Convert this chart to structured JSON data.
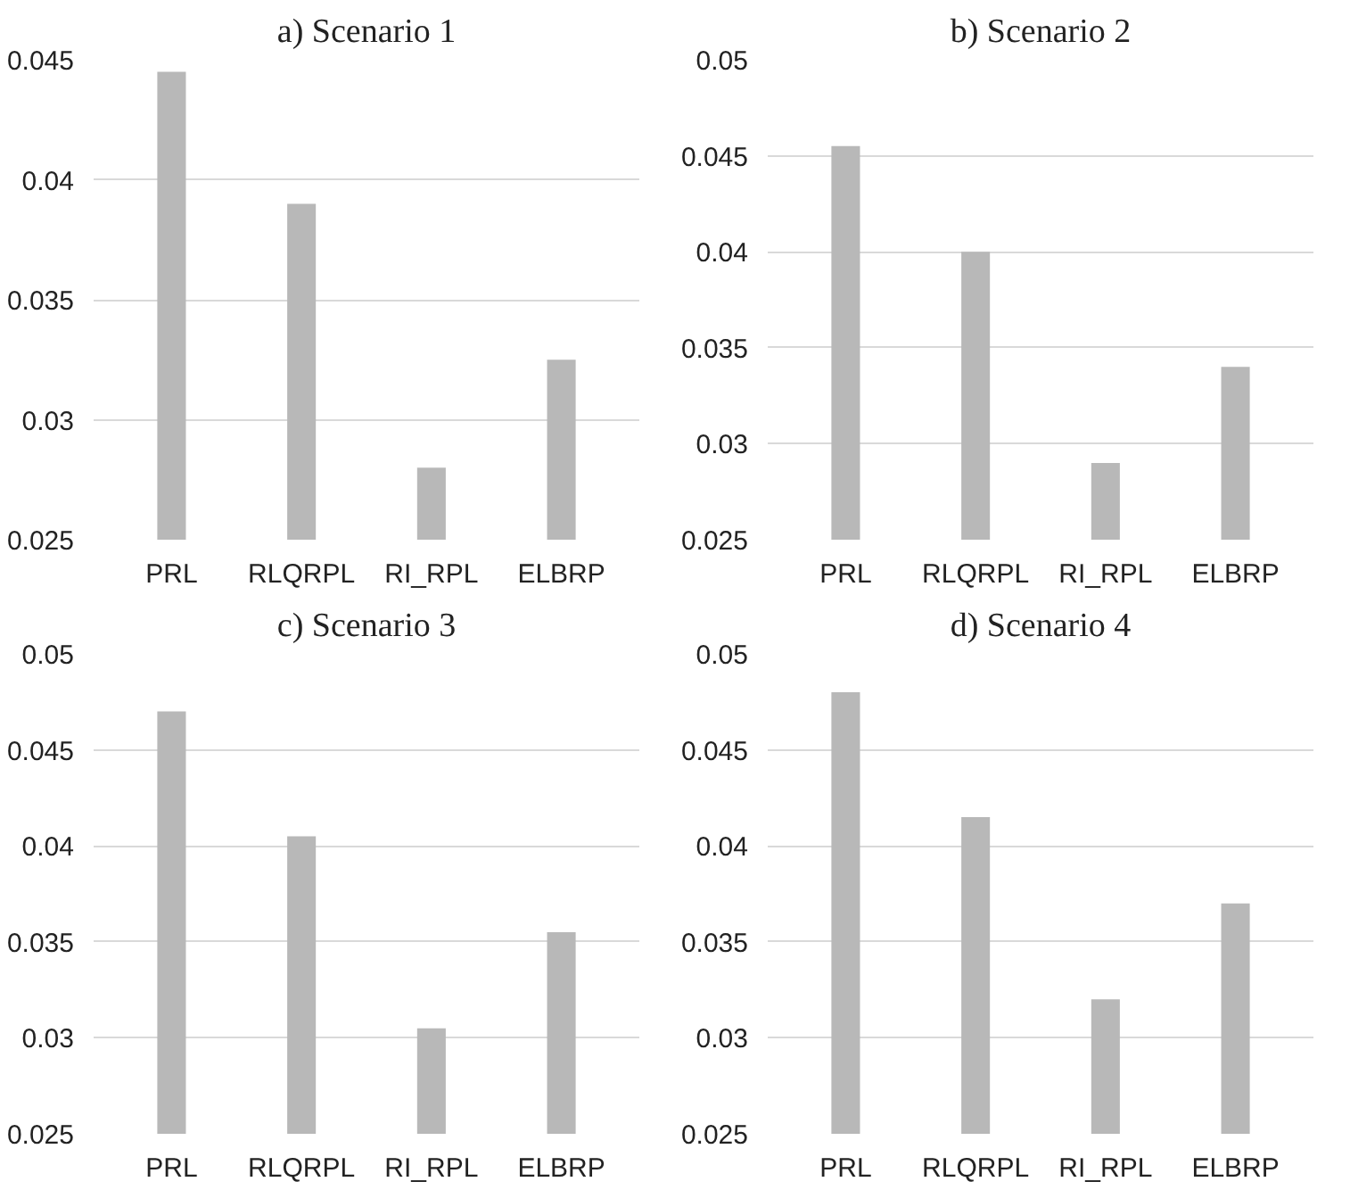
{
  "chart_data": [
    {
      "type": "bar",
      "title": "a) Scenario 1",
      "categories": [
        "PRL",
        "RLQRPL",
        "RI_RPL",
        "ELBRP"
      ],
      "values": [
        0.0445,
        0.039,
        0.028,
        0.0325
      ],
      "color": "#b8b8b8",
      "ylim": [
        0.025,
        0.045
      ],
      "yticks": [
        {
          "value": 0.025,
          "label": "0.025"
        },
        {
          "value": 0.03,
          "label": "0.03"
        },
        {
          "value": 0.035,
          "label": "0.035"
        },
        {
          "value": 0.04,
          "label": "0.04"
        },
        {
          "value": 0.045,
          "label": "0.045"
        }
      ],
      "grid": "y"
    },
    {
      "type": "bar",
      "title": "b) Scenario 2",
      "categories": [
        "PRL",
        "RLQRPL",
        "RI_RPL",
        "ELBRP"
      ],
      "values": [
        0.0455,
        0.04,
        0.029,
        0.034
      ],
      "color": "#b8b8b8",
      "ylim": [
        0.025,
        0.05
      ],
      "yticks": [
        {
          "value": 0.025,
          "label": "0.025"
        },
        {
          "value": 0.03,
          "label": "0.03"
        },
        {
          "value": 0.035,
          "label": "0.035"
        },
        {
          "value": 0.04,
          "label": "0.04"
        },
        {
          "value": 0.045,
          "label": "0.045"
        },
        {
          "value": 0.05,
          "label": "0.05"
        }
      ],
      "grid": "y"
    },
    {
      "type": "bar",
      "title": "c) Scenario 3",
      "categories": [
        "PRL",
        "RLQRPL",
        "RI_RPL",
        "ELBRP"
      ],
      "values": [
        0.047,
        0.0405,
        0.0305,
        0.0355
      ],
      "color": "#b8b8b8",
      "ylim": [
        0.025,
        0.05
      ],
      "yticks": [
        {
          "value": 0.025,
          "label": "0.025"
        },
        {
          "value": 0.03,
          "label": "0.03"
        },
        {
          "value": 0.035,
          "label": "0.035"
        },
        {
          "value": 0.04,
          "label": "0.04"
        },
        {
          "value": 0.045,
          "label": "0.045"
        },
        {
          "value": 0.05,
          "label": "0.05"
        }
      ],
      "grid": "y"
    },
    {
      "type": "bar",
      "title": "d) Scenario 4",
      "categories": [
        "PRL",
        "RLQRPL",
        "RI_RPL",
        "ELBRP"
      ],
      "values": [
        0.048,
        0.0415,
        0.032,
        0.037
      ],
      "color": "#b8b8b8",
      "ylim": [
        0.025,
        0.05
      ],
      "yticks": [
        {
          "value": 0.025,
          "label": "0.025"
        },
        {
          "value": 0.03,
          "label": "0.03"
        },
        {
          "value": 0.035,
          "label": "0.035"
        },
        {
          "value": 0.04,
          "label": "0.04"
        },
        {
          "value": 0.045,
          "label": "0.045"
        },
        {
          "value": 0.05,
          "label": "0.05"
        }
      ],
      "grid": "y"
    }
  ]
}
